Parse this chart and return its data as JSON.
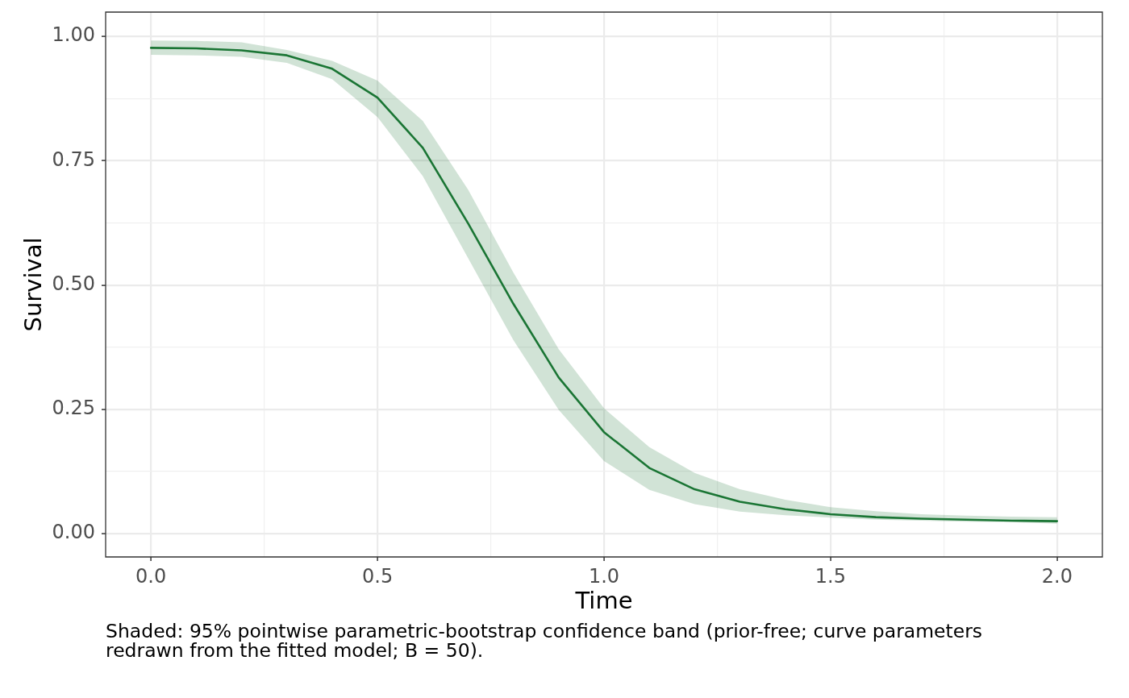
{
  "chart_data": {
    "type": "line",
    "x": [
      0,
      0.1,
      0.2,
      0.3,
      0.4,
      0.5,
      0.6,
      0.7,
      0.8,
      0.9,
      1.0,
      1.1,
      1.2,
      1.3,
      1.4,
      1.5,
      1.6,
      1.7,
      1.8,
      1.9,
      2.0
    ],
    "series": [
      {
        "color": "#1a7534",
        "values": [
          0.977,
          0.976,
          0.972,
          0.962,
          0.935,
          0.877,
          0.776,
          0.624,
          0.462,
          0.314,
          0.204,
          0.132,
          0.089,
          0.064,
          0.049,
          0.039,
          0.033,
          0.03,
          0.028,
          0.026,
          0.025
        ],
        "lower": [
          0.963,
          0.962,
          0.959,
          0.947,
          0.914,
          0.838,
          0.719,
          0.554,
          0.389,
          0.249,
          0.146,
          0.088,
          0.059,
          0.044,
          0.037,
          0.032,
          0.028,
          0.026,
          0.024,
          0.023,
          0.02
        ],
        "upper": [
          0.992,
          0.991,
          0.988,
          0.973,
          0.951,
          0.911,
          0.83,
          0.692,
          0.525,
          0.371,
          0.252,
          0.174,
          0.122,
          0.089,
          0.068,
          0.053,
          0.045,
          0.039,
          0.036,
          0.034,
          0.033
        ]
      }
    ],
    "xlabel": "Time",
    "ylabel": "Survival",
    "xlim": [
      -0.1,
      2.1
    ],
    "ylim": [
      -0.047,
      1.049
    ],
    "xticks": [
      {
        "value": 0,
        "label": "0.0"
      },
      {
        "value": 0.25,
        "label": null
      },
      {
        "value": 0.5,
        "label": "0.5"
      },
      {
        "value": 0.75,
        "label": null
      },
      {
        "value": 1,
        "label": "1.0"
      },
      {
        "value": 1.25,
        "label": null
      },
      {
        "value": 1.5,
        "label": "1.5"
      },
      {
        "value": 1.75,
        "label": null
      },
      {
        "value": 2,
        "label": "2.0"
      }
    ],
    "yticks": [
      {
        "value": 0,
        "label": "0.00"
      },
      {
        "value": 0.125,
        "label": null
      },
      0.25,
      {
        "value": 0.375,
        "label": null
      },
      {
        "value": 0.5,
        "label": "0.50"
      },
      {
        "value": 0.625,
        "label": null
      },
      0.75,
      {
        "value": 0.875,
        "label": null
      },
      {
        "value": 1,
        "label": "1.00"
      }
    ],
    "grid": true,
    "legend": false,
    "marker": "none",
    "line_style": "solid",
    "annotations": [
      "Shaded: 95% pointwise parametric-bootstrap confidence band (prior-free; curve parameters redrawn from the fitted model; B = 50)."
    ]
  }
}
